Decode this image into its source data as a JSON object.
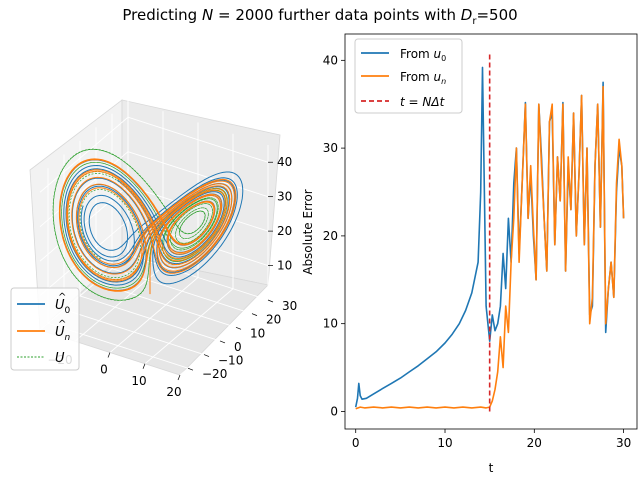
{
  "figure": {
    "title_prefix": "Predicting ",
    "title_N": "N",
    "title_mid": " = 2000 further data points with ",
    "title_D": "D",
    "title_sub": "r",
    "title_suffix": "=500"
  },
  "colors": {
    "from_u0": "#1f77b4",
    "from_un": "#ff7f0e",
    "truth": "#2ca02c",
    "cutoff": "#d62728"
  },
  "chart_data": [
    {
      "type": "line",
      "subtype": "3d-trajectory",
      "x_ticks": [
        "0",
        "10",
        "20"
      ],
      "x_partial_tick": "−20",
      "y_ticks": [
        "−20",
        "−10",
        "0",
        "10",
        "20",
        "30"
      ],
      "z_ticks": [
        "10",
        "20",
        "30",
        "40"
      ],
      "xlim": [
        -20,
        20
      ],
      "ylim": [
        -25,
        30
      ],
      "zlim": [
        0,
        45
      ],
      "legend": {
        "placement": "lower-left",
        "items": [
          {
            "symbol": "U",
            "accent": "^",
            "sub": "0",
            "color": "#1f77b4",
            "dash": "solid"
          },
          {
            "symbol": "U",
            "accent": "^",
            "sub": "n",
            "color": "#ff7f0e",
            "dash": "solid"
          },
          {
            "symbol": "U",
            "accent": "",
            "sub": "",
            "color": "#2ca02c",
            "dash": "dashed"
          }
        ]
      },
      "grid": true
    },
    {
      "type": "line",
      "xlabel": "t",
      "ylabel": "Absolute Error",
      "xlim": [
        -1.2,
        31.5
      ],
      "ylim": [
        -2,
        43
      ],
      "x_ticks": [
        0,
        10,
        20,
        30
      ],
      "y_ticks": [
        0,
        10,
        20,
        30,
        40
      ],
      "legend": {
        "placement": "upper-left",
        "items": [
          {
            "label_prefix": "From ",
            "label_var": "u",
            "label_sub": "0",
            "color": "#1f77b4",
            "dash": "solid"
          },
          {
            "label_prefix": "From ",
            "label_var": "u",
            "label_sub": "n",
            "color": "#ff7f0e",
            "dash": "solid"
          },
          {
            "label_prefix": "t = NΔt",
            "label_var": "",
            "label_sub": "",
            "color": "#d62728",
            "dash": "dashed"
          }
        ]
      },
      "cutoff": {
        "t": 15,
        "y": [
          0,
          41
        ]
      },
      "series": [
        {
          "name": "From u0",
          "x": [
            0,
            0.2,
            0.35,
            0.5,
            0.7,
            1.2,
            2,
            3,
            4,
            5,
            6,
            7,
            8,
            9,
            10,
            10.8,
            11.6,
            12.3,
            13,
            13.7,
            14,
            14.2,
            14.6,
            15,
            15.3,
            15.6,
            15.9,
            16.2,
            16.5,
            16.8,
            17.1,
            17.4,
            17.7,
            18,
            18.3,
            18.6,
            19,
            19.3,
            19.6,
            19.9,
            20.2,
            20.5,
            20.8,
            21.1,
            21.4,
            21.7,
            22,
            22.3,
            22.6,
            22.9,
            23.2,
            23.5,
            23.8,
            24.1,
            24.4,
            24.7,
            25,
            25.3,
            25.6,
            25.9,
            26.2,
            26.5,
            26.8,
            27.1,
            27.4,
            27.7,
            28,
            28.3,
            28.6,
            28.9,
            29.2,
            29.5,
            29.8,
            30
          ],
          "values": [
            0.5,
            1.5,
            3.2,
            1.8,
            1.4,
            1.5,
            2,
            2.6,
            3.2,
            3.8,
            4.5,
            5.2,
            6,
            6.8,
            7.8,
            8.8,
            10,
            11.5,
            13.5,
            17,
            25,
            39.2,
            12,
            8,
            11,
            9.2,
            10,
            12,
            18,
            14,
            22,
            17,
            26,
            30,
            18,
            25,
            35.2,
            22,
            27,
            20,
            15,
            35,
            29,
            22,
            16,
            33,
            34,
            19,
            29,
            24,
            35.2,
            16,
            28,
            23,
            34,
            20,
            27,
            36,
            19,
            30,
            11,
            12,
            28,
            35,
            21,
            37.5,
            9,
            14,
            17,
            13,
            25,
            30,
            28,
            22
          ]
        },
        {
          "name": "From un",
          "x": [
            0,
            0.5,
            1,
            2,
            3,
            4,
            5,
            6,
            7,
            8,
            9,
            10,
            11,
            12,
            13,
            14,
            14.6,
            15,
            15.3,
            15.6,
            15.9,
            16.2,
            16.5,
            16.8,
            17.1,
            17.4,
            17.7,
            18,
            18.3,
            18.6,
            19,
            19.3,
            19.6,
            19.9,
            20.2,
            20.5,
            20.8,
            21.1,
            21.4,
            21.7,
            22,
            22.3,
            22.6,
            22.9,
            23.2,
            23.5,
            23.8,
            24.1,
            24.4,
            24.7,
            25,
            25.3,
            25.6,
            25.9,
            26.2,
            26.5,
            26.8,
            27.1,
            27.4,
            27.7,
            28,
            28.3,
            28.6,
            28.9,
            29.2,
            29.5,
            29.8,
            30
          ],
          "values": [
            0.3,
            0.5,
            0.4,
            0.5,
            0.4,
            0.5,
            0.4,
            0.5,
            0.4,
            0.5,
            0.4,
            0.5,
            0.4,
            0.5,
            0.4,
            0.5,
            0.4,
            0.5,
            1.2,
            2.5,
            4.5,
            8.5,
            5,
            12,
            9,
            17,
            22,
            30,
            17,
            25,
            35,
            22,
            28,
            21,
            15,
            35,
            28,
            22,
            16,
            33,
            35,
            19,
            29,
            24,
            35,
            16,
            29,
            23,
            34,
            20,
            27,
            36,
            19,
            30,
            10,
            13,
            28,
            35,
            21,
            37,
            10,
            14,
            17,
            13,
            26,
            31,
            28,
            22
          ]
        }
      ]
    }
  ]
}
